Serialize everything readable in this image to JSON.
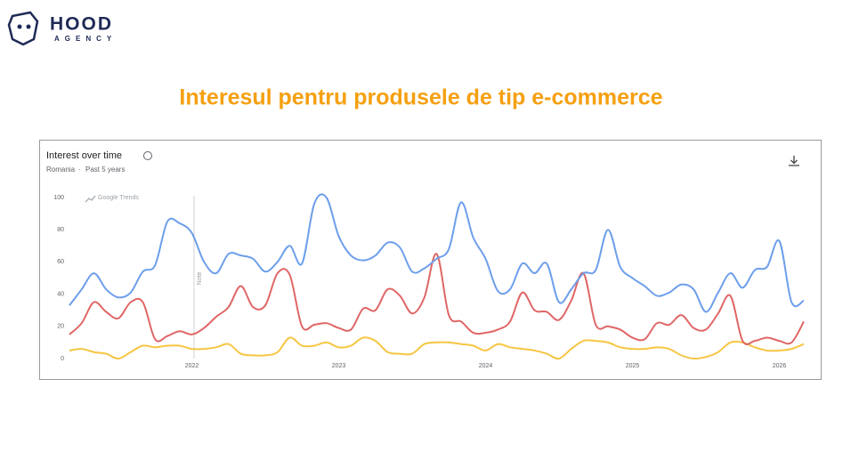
{
  "logo": {
    "text": "HOOD",
    "subtext": "AGENCY"
  },
  "title": "Interesul pentru produsele de tip e-commerce",
  "chart_data": {
    "type": "line",
    "title": "Interest over time",
    "region": "Romania",
    "period": "Past 5 years",
    "watermark": "Google Trends",
    "annotation": "Note",
    "categories": [
      null,
      null,
      null,
      null,
      null,
      null,
      null,
      null,
      null,
      null,
      "2022",
      null,
      null,
      null,
      null,
      null,
      null,
      null,
      null,
      null,
      null,
      null,
      "2023",
      null,
      null,
      null,
      null,
      null,
      null,
      null,
      null,
      null,
      null,
      null,
      "2024",
      null,
      null,
      null,
      null,
      null,
      null,
      null,
      null,
      null,
      null,
      null,
      "2025",
      null,
      null,
      null,
      null,
      null,
      null,
      null,
      null,
      null,
      null,
      null,
      "2026",
      null,
      null
    ],
    "series": [
      {
        "color": "#6d9eeb",
        "values": [
          33,
          43,
          53,
          43,
          38,
          41,
          54,
          58,
          85,
          84,
          78,
          60,
          53,
          65,
          64,
          62,
          54,
          60,
          70,
          59,
          96,
          100,
          76,
          64,
          61,
          64,
          72,
          69,
          54,
          56,
          62,
          68,
          97,
          75,
          62,
          42,
          43,
          59,
          53,
          59,
          35,
          43,
          53,
          55,
          80,
          57,
          50,
          45,
          39,
          41,
          46,
          43,
          29,
          41,
          53,
          44,
          55,
          57,
          73,
          35,
          36
        ]
      },
      {
        "color": "#e06666",
        "values": [
          15,
          22,
          35,
          29,
          25,
          35,
          35,
          12,
          14,
          17,
          15,
          19,
          26,
          32,
          45,
          32,
          33,
          53,
          52,
          20,
          21,
          22,
          19,
          18,
          31,
          30,
          43,
          39,
          28,
          38,
          65,
          27,
          23,
          16,
          16,
          18,
          23,
          41,
          30,
          29,
          24,
          36,
          53,
          21,
          20,
          18,
          13,
          12,
          22,
          21,
          27,
          19,
          18,
          28,
          39,
          11,
          11,
          13,
          11,
          10,
          23
        ]
      },
      {
        "color": "#f6c542",
        "values": [
          5,
          6,
          4,
          3,
          0,
          4,
          8,
          7,
          8,
          8,
          6,
          6,
          7,
          9,
          3,
          2,
          2,
          4,
          13,
          8,
          8,
          10,
          7,
          8,
          13,
          11,
          4,
          3,
          3,
          9,
          10,
          10,
          9,
          8,
          5,
          9,
          7,
          6,
          5,
          3,
          0,
          6,
          11,
          11,
          10,
          7,
          6,
          6,
          7,
          6,
          2,
          0,
          1,
          4,
          10,
          10,
          7,
          5,
          5,
          6,
          9
        ]
      }
    ],
    "ylim": [
      0,
      100
    ],
    "yticks": [
      0,
      20,
      40,
      60,
      80,
      100
    ],
    "grid": false
  }
}
